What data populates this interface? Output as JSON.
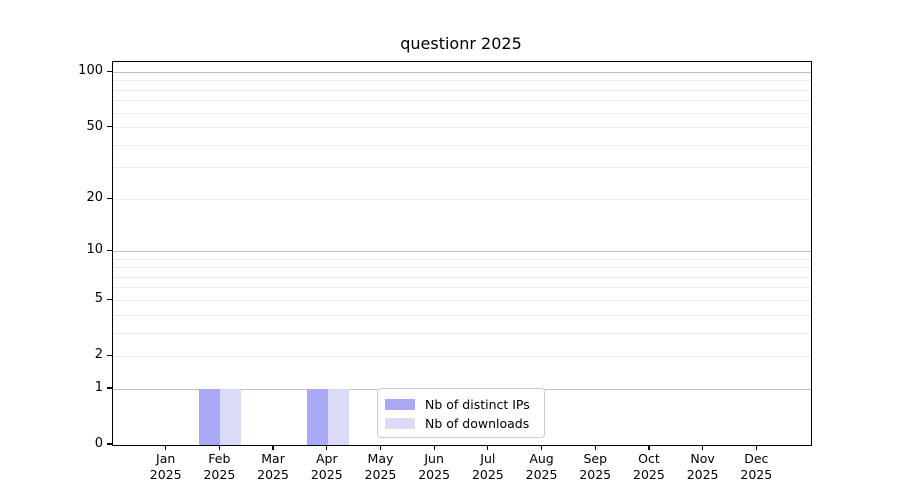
{
  "figure": {
    "background": "#ffffff",
    "axis_color": "#000000"
  },
  "chart_data": {
    "type": "bar",
    "title": "questionr 2025",
    "categories": [
      "Jan 2025",
      "Feb 2025",
      "Mar 2025",
      "Apr 2025",
      "May 2025",
      "Jun 2025",
      "Jul 2025",
      "Aug 2025",
      "Sep 2025",
      "Oct 2025",
      "Nov 2025",
      "Dec 2025"
    ],
    "series": [
      {
        "name": "Nb of distinct IPs",
        "color": "#a9a9f5",
        "values": [
          0,
          1,
          0,
          1,
          0,
          0,
          0,
          0,
          0,
          0,
          0,
          0
        ]
      },
      {
        "name": "Nb of downloads",
        "color": "#dbdbf8",
        "values": [
          0,
          1,
          0,
          1,
          0,
          0,
          0,
          0,
          0,
          0,
          0,
          0
        ]
      }
    ],
    "xlabel": "",
    "ylabel": "",
    "yscale": "log1p",
    "ylim": [
      0,
      114
    ],
    "ytick_values": [
      0,
      1,
      2,
      5,
      10,
      20,
      50,
      100
    ],
    "ytick_labels": [
      "0",
      "1",
      "2",
      "5",
      "10",
      "20",
      "50",
      "100"
    ],
    "grid": {
      "on": true,
      "minor_values": [
        2,
        3,
        4,
        5,
        6,
        7,
        8,
        9,
        20,
        30,
        40,
        50,
        60,
        70,
        80,
        90
      ],
      "major_values": [
        1,
        10,
        100
      ],
      "minor_color": "#ebebeb",
      "major_color": "#bfbfbf"
    },
    "legend": {
      "position": "lower center",
      "items": [
        {
          "label": "Nb of distinct IPs",
          "color": "#a9a9f5"
        },
        {
          "label": "Nb of downloads",
          "color": "#dbdbf8"
        }
      ]
    }
  }
}
